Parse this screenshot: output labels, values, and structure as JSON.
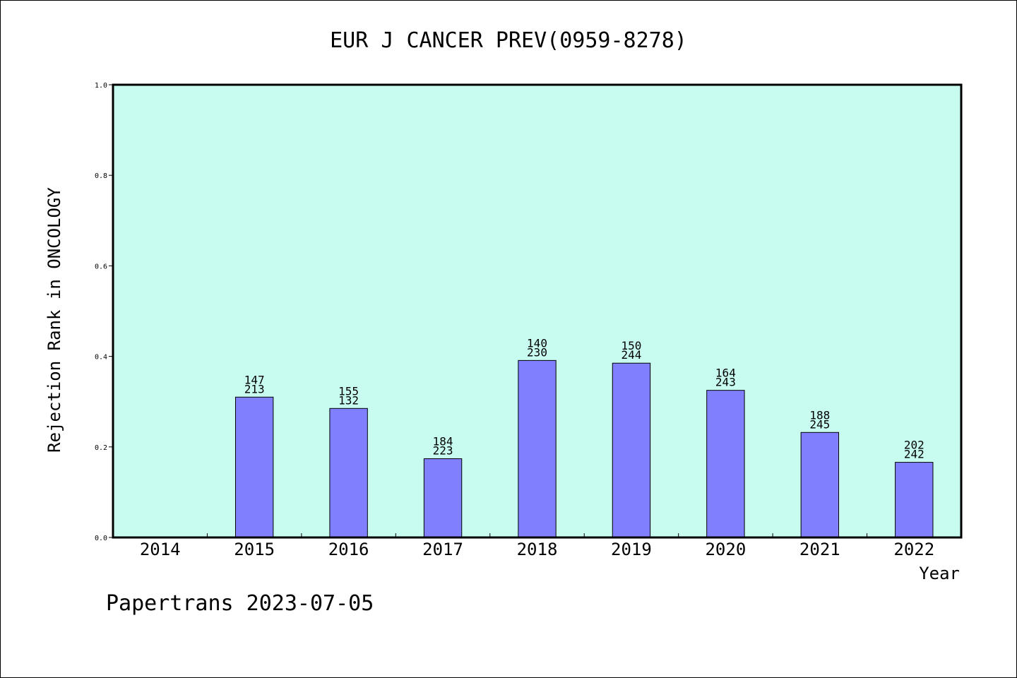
{
  "chart_data": {
    "type": "bar",
    "title": "EUR J CANCER PREV(0959-8278)",
    "xlabel": "Year",
    "ylabel": "Rejection Rank in ONCOLOGY",
    "ylim": [
      0,
      1.0
    ],
    "y_ticks": [
      "0.0",
      "0.2",
      "0.4",
      "0.6",
      "0.8",
      "1.0"
    ],
    "categories": [
      "2014",
      "2015",
      "2016",
      "2017",
      "2018",
      "2019",
      "2020",
      "2021",
      "2022"
    ],
    "values": [
      null,
      0.31,
      0.285,
      0.174,
      0.391,
      0.385,
      0.325,
      0.232,
      0.166
    ],
    "bar_labels": [
      null,
      [
        "147",
        "213"
      ],
      [
        "155",
        "132"
      ],
      [
        "184",
        "223"
      ],
      [
        "140",
        "230"
      ],
      [
        "150",
        "244"
      ],
      [
        "164",
        "243"
      ],
      [
        "188",
        "245"
      ],
      [
        "202",
        "242"
      ]
    ],
    "grid": false,
    "colors": {
      "plot_background": "#c8fcf0",
      "bar_fill": "#8080ff",
      "bar_stroke": "#000000"
    }
  },
  "footer": {
    "text": "Papertrans 2023-07-05"
  }
}
